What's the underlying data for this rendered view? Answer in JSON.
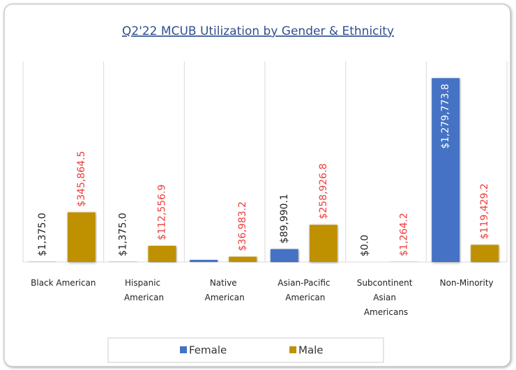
{
  "chart_data": {
    "type": "bar",
    "title": "Q2'22 MCUB Utilization by Gender & Ethnicity",
    "categories": [
      "Black American",
      "Hispanic American",
      "Native American",
      "Asian-Pacific American",
      "Subcontinent Asian Americans",
      "Non-Minority"
    ],
    "series": [
      {
        "name": "Female",
        "color": "#4472c4",
        "label_color": "#222222",
        "values": [
          1375,
          1375,
          15000,
          89990.1,
          0,
          1279773.8
        ],
        "value_labels": [
          "$1,375.0",
          "$1,375.0",
          null,
          "$89,990.1",
          "$0.0",
          "$1,279,773.8"
        ]
      },
      {
        "name": "Male",
        "color": "#bf9000",
        "label_color": "#f03a3a",
        "values": [
          345864.5,
          112556.9,
          36983.2,
          258926.8,
          1264.2,
          119429.2
        ],
        "value_labels": [
          "$345,864.5",
          "$112,556.9",
          "$36,983.2",
          "$258,926.8",
          "$1,264.2",
          "$119,429.2"
        ]
      }
    ],
    "ylim": [
      0,
      1300000
    ],
    "legend": "bottom"
  }
}
